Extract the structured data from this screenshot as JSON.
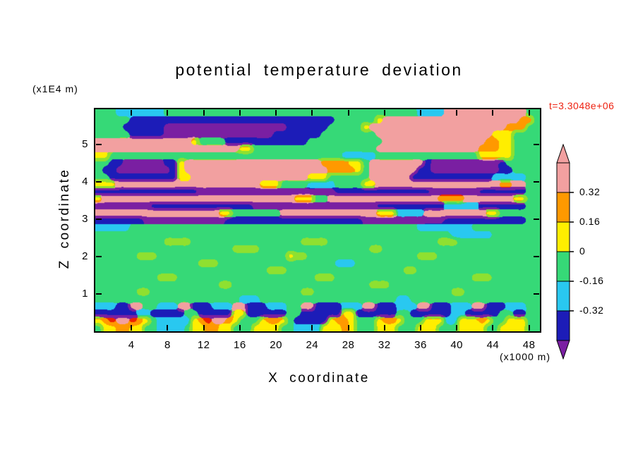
{
  "title": "potential temperature deviation",
  "time_label": "t=3.3048e+06",
  "axes": {
    "x_label": "X coordinate",
    "x_unit": "(x1000 m)",
    "y_label": "Z coordinate",
    "y_unit": "(x1E4 m)",
    "x_ticks": [
      4,
      8,
      12,
      16,
      20,
      24,
      28,
      32,
      36,
      40,
      44,
      48
    ],
    "y_ticks": [
      1,
      2,
      3,
      4,
      5
    ],
    "x_range": [
      0,
      49.2
    ],
    "y_range": [
      0,
      5.94
    ]
  },
  "colorbar": {
    "boundary_labels": [
      "0.32",
      "0.16",
      "0",
      "-0.16",
      "-0.32"
    ],
    "segment_colors_top_to_bottom": [
      "#F2A0A0",
      "#FF9900",
      "#FFEE00",
      "#36D977",
      "#29C8F0",
      "#1C1CB8"
    ],
    "arrow_top_color": "#F2A0A0",
    "arrow_bottom_color": "#7A1FA2"
  },
  "colors": {
    "background": "#FFFFFF",
    "frame": "#000000",
    "time_label": "#EE2211"
  },
  "chart_data": {
    "type": "heatmap",
    "title": "potential temperature deviation",
    "xlabel": "X coordinate (x1000 m)",
    "ylabel": "Z coordinate (x1E4 m)",
    "time": "t=3.3048e+06",
    "x_range": [
      0,
      49.2
    ],
    "z_range": [
      0,
      5.94
    ],
    "contour_levels": [
      -0.32,
      -0.16,
      0,
      0.16,
      0.32
    ],
    "palette": {
      "p": "#F2A0A0",
      "r": "#EE2200",
      "O": "#FF9900",
      "Y": "#FFEE00",
      "L": "#8FE030",
      "G": "#36D977",
      "C": "#29C8F0",
      "B": "#1C1CB8",
      "V": "#7A1FA2"
    },
    "band_value_centers": {
      "V": -0.44,
      "B": -0.38,
      "C": -0.24,
      "G": -0.08,
      "L": 0.03,
      "Y": 0.08,
      "O": 0.24,
      "r": 0.36,
      "p": 0.42
    },
    "grid_rows_top_to_bottom": [
      "GGGCCCCCCCGGGGGGGGGGGGGGGGGGGGGGGGGGGGGGGGGGGGGCCCCppppppppppppGG",
      "GGGGGBBBBBBBBBBBBBBBBBBBBBBBBBBBBBBGGGGGGYppppppppppppppppppppOO",
      "GGGGBBBBBBVVVVVVVVVVVVVVVVVVBBBBBBGGGGGYppppppppppppppppppppOOO",
      "GGGGGBBBBBVVVVVVVVVVVVVVVVBBBBBBBGGGGGGGGpppppppppppppppppYYYGG",
      "ppppppppppppppYGGGGBBBBBBBBBBBBGGGGGGGGGGGpppppppppppppppOOYYGG",
      "pppppppppppppppppppppYYGGGGGGGGGGGGGGGGGGpppppppppppppppOOOYYGG",
      "YYGGGGGGGGGGGGGGGGGGGGGGGGGGGGGGGGGGCCCCCGGGGGGGGGGGGGGGYYYYYGG",
      "GGBBVVVVVVBBYppppppppppppppppppppOOOOYYGppppppppBVVVVVVVVVVBGGG",
      "GBBVVVVVVVVBYpppppppppppppppppppppOOOOYGpppppppBBVVVVVVVVVVBBGG",
      "GGBBBBBBBBBBYYpppppppppppppppppYYYGGGGGGppppppBBBBBBBBBBBBCCCCC",
      "YYYpppppppppppppppppppppYYYGGGGCCCCGGGGYYppppppppppppppppppOOpp",
      "BBBBBBBBBBBBBBBVVVVVVVVVVVVVVVVVVVVBBBBBBBBBBBBBBVVVVVVVBBBBBBB",
      "YppppppppppppppppppppppppppppYYYGGppppppppppppppppOOOOpppppppYY",
      "VVVVVVVVBBBBBBBBBBBBBBBVVVVVVVVVVVVVVVVVVBBBBBBBBBBCCCCCBBBBBBB",
      "ppppppppppppppppppYYGGGGGGGppppppppppppppYYYCCCCpppppppppYYGGGG",
      "BBBBBBBVVVVVVVVVVVVBBBBBBBBBBBBBBBBBBBBVVVVVVVVVVVVBBBBBBBBBBBB",
      "CCCCCGGGGGGGGGGGGGGGGGGGGGGGGGGGGGGGGGGGGGGGGGGCCCCCCCCGGGGGGG",
      "GGGGGGGGGGGGGGGGGGGGGGGGGGGGGGGGGGGGGGGGGGGGGGGGGGGGCCCCCCGGGGG",
      "GGGGGGGGGGLLLLGGGGGGGGGGGGGGGGLLLLGGGGGGGGGGGGGGGGLLLGGGGGGGGGG",
      "GGGGGGGGGGGGGGGGGGGGLLLLGGGGGGGGGGGGGGGGLLGGGGGGGGGGGGGGGGGGGGG",
      "GGGGGGLLLGGGGGGGGGGGGGGGGGGGYLLGGGGGGGGGGGGGGGGLLLGGGGGGGGGGGGG",
      "GGGGGGGGGGGGGGGLLLGGGGGGGGGGGGGGGGGCCCGGGGGGGGGGGGGGGGGGGGGGGGG",
      "GGGGGGGGGGGGGGGGGGGGGGGGGLLLGGGGGGGGGGGGGGGGGLLGGGGGGGGGGGGGGGG",
      "GGGGGGGGGLLLGGGGGGGGGGGGGGGGGGGGLLLGGGGGGGGGGGGGGGGGGGGLLLGGGGG",
      "GGGGGGGGGGGGGGGGGGLLGGGGGGGGGGGGGGGGGGGGLLLGGGGGGGGGGGGGGGGGGGG",
      "GGGGGGLLGGGGGGGGGGGGGGGGGGGGGGLLGGGGGGGGGGGGGGGGGGGGLLGGGGGGGGG",
      "GGGGGGGGGGGGGGGGGGGGGCCCGGGGGGGGGGGGGGGGGGGGCCGGGGGGGGGGGGGGGGG",
      "CCCBBppGGCCCppBBBCCCppBBBCCCGGppBBBBCCCppBBBCCCppBBBCCCppBBBCCC",
      "BBBBBBCCBBBBBGGBBBBBYYBBBBBBGGBBBBBBYYBBBBBBGGBBBBBBCCBBBBBGGBB",
      "YOrpprOYGCCCCCYOrppOYGGGYOOYGBBBBBYOOYGGGYOOYGGGYYYCCYYYOYGGYYY",
      "GYYOOYYGGCCCCGYYOOYYGGGYYYYGGCCCCYYYOYGGGYYYGGGYYYGGGYYYYGGYYYY"
    ]
  }
}
